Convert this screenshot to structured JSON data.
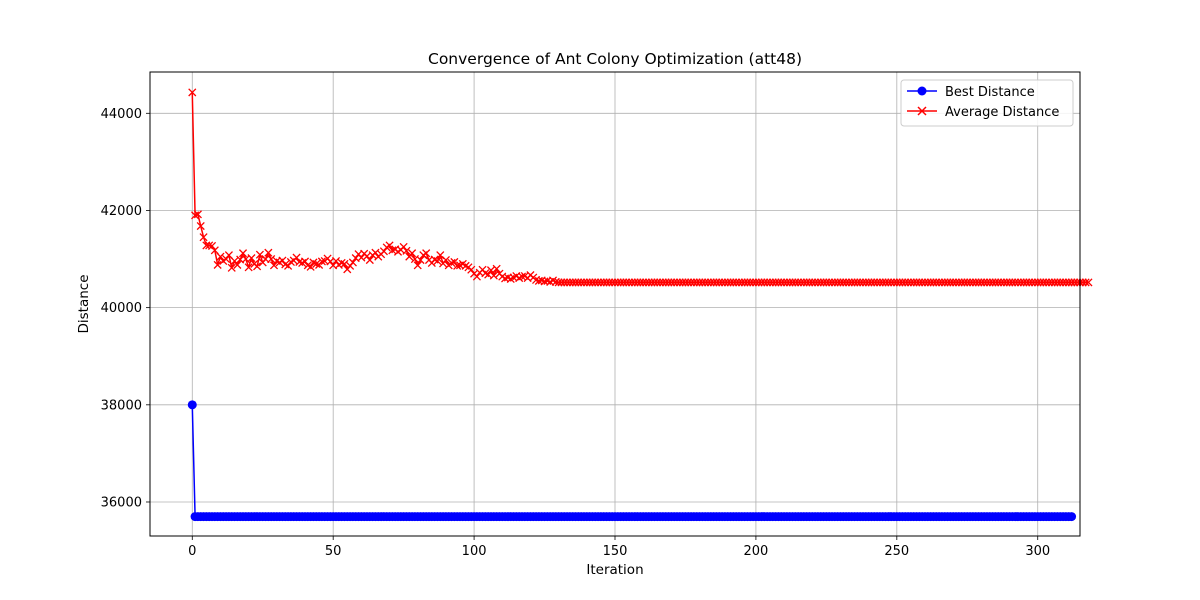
{
  "chart_data": {
    "type": "line",
    "title": "Convergence of Ant Colony Optimization (att48)",
    "xlabel": "Iteration",
    "ylabel": "Distance",
    "xlim": [
      -15,
      315
    ],
    "ylim": [
      35300,
      44850
    ],
    "xticks": [
      0,
      50,
      100,
      150,
      200,
      250,
      300
    ],
    "yticks": [
      36000,
      38000,
      40000,
      42000,
      44000
    ],
    "grid": true,
    "legend_position": "upper right",
    "series": [
      {
        "name": "Best Distance",
        "color": "#0000ff",
        "marker": "circle",
        "x_start": 0,
        "x_step": 1,
        "values": [
          38000,
          35700,
          35700,
          35700,
          35700,
          35700,
          35700,
          35700,
          35700,
          35700,
          35700,
          35700,
          35700,
          35700,
          35700,
          35700,
          35700,
          35700,
          35700,
          35700,
          35700,
          35700,
          35700,
          35700,
          35700,
          35700,
          35700,
          35700,
          35700,
          35700,
          35700,
          35700,
          35700,
          35700,
          35700,
          35700,
          35700,
          35700,
          35700,
          35700,
          35700,
          35700,
          35700,
          35700,
          35700,
          35700,
          35700,
          35700,
          35700,
          35700,
          35700,
          35700,
          35700,
          35700,
          35700,
          35700,
          35700,
          35700,
          35700,
          35700,
          35700,
          35700,
          35700,
          35700,
          35700,
          35700,
          35700,
          35700,
          35700,
          35700,
          35700,
          35700,
          35700,
          35700,
          35700,
          35700,
          35700,
          35700,
          35700,
          35700,
          35700,
          35700,
          35700,
          35700,
          35700,
          35700,
          35700,
          35700,
          35700,
          35700,
          35700,
          35700,
          35700,
          35700,
          35700,
          35700,
          35700,
          35700,
          35700,
          35700,
          35700,
          35700,
          35700,
          35700,
          35700,
          35700,
          35700,
          35700,
          35700,
          35700,
          35700,
          35700,
          35700,
          35700,
          35700,
          35700,
          35700,
          35700,
          35700,
          35700,
          35700,
          35700,
          35700,
          35700,
          35700,
          35700,
          35700,
          35700,
          35700,
          35700,
          35700,
          35700,
          35700,
          35700,
          35700,
          35700,
          35700,
          35700,
          35700,
          35700,
          35700,
          35700,
          35700,
          35700,
          35700,
          35700,
          35700,
          35700,
          35700,
          35700,
          35700,
          35700,
          35700,
          35700,
          35700,
          35700,
          35700,
          35700,
          35700,
          35700,
          35700,
          35700,
          35700,
          35700,
          35700,
          35700,
          35700,
          35700,
          35700,
          35700,
          35700,
          35700,
          35700,
          35700,
          35700,
          35700,
          35700,
          35700,
          35700,
          35700,
          35700,
          35700,
          35700,
          35700,
          35700,
          35700,
          35700,
          35700,
          35700,
          35700,
          35700,
          35700,
          35700,
          35700,
          35700,
          35700,
          35700,
          35700,
          35700,
          35700,
          35700,
          35700,
          35700,
          35700,
          35700,
          35700,
          35700,
          35700,
          35700,
          35700,
          35700,
          35700,
          35700,
          35700,
          35700,
          35700,
          35700,
          35700,
          35700,
          35700,
          35700,
          35700,
          35700,
          35700,
          35700,
          35700,
          35700,
          35700,
          35700,
          35700,
          35700,
          35700,
          35700,
          35700,
          35700,
          35700,
          35700,
          35700,
          35700,
          35700,
          35700,
          35700,
          35700,
          35700,
          35700,
          35700,
          35700,
          35700,
          35700,
          35700,
          35700,
          35700,
          35700,
          35700,
          35700,
          35700,
          35700,
          35700,
          35700,
          35700,
          35700,
          35700,
          35700,
          35700,
          35700,
          35700,
          35700,
          35700,
          35700,
          35700,
          35700,
          35700,
          35700,
          35700,
          35700,
          35700,
          35700,
          35700,
          35700,
          35700,
          35700,
          35700,
          35700,
          35700,
          35700,
          35700,
          35700,
          35700,
          35700,
          35700,
          35700,
          35700,
          35700,
          35700,
          35700,
          35700,
          35700,
          35700,
          35700,
          35700,
          35700,
          35700,
          35700,
          35700,
          35700,
          35700,
          35700,
          35700,
          35700,
          35700,
          35700,
          35700,
          35700
        ]
      },
      {
        "name": "Average Distance",
        "color": "#ff0000",
        "marker": "x",
        "x_start": 0,
        "x_step": 1,
        "values": [
          44430,
          41900,
          41920,
          41680,
          41450,
          41280,
          41280,
          41270,
          41180,
          40880,
          41050,
          40960,
          41000,
          41080,
          40820,
          40960,
          40880,
          40990,
          41120,
          41000,
          40830,
          41020,
          40900,
          40850,
          41090,
          40930,
          41000,
          41130,
          41000,
          40870,
          40960,
          40930,
          40970,
          40890,
          40860,
          40940,
          40970,
          41030,
          40940,
          40920,
          40950,
          40870,
          40840,
          40930,
          40900,
          40880,
          40950,
          40960,
          41010,
          40950,
          40870,
          40960,
          40880,
          40920,
          40900,
          40790,
          40860,
          40930,
          41020,
          41100,
          41030,
          41110,
          41060,
          40980,
          41080,
          41130,
          41050,
          41100,
          41160,
          41240,
          41280,
          41180,
          41200,
          41150,
          41190,
          41250,
          41170,
          41050,
          41120,
          41000,
          40870,
          40980,
          41080,
          41120,
          40980,
          40920,
          40990,
          40960,
          41080,
          40910,
          40980,
          40870,
          40920,
          40940,
          40860,
          40870,
          40900,
          40860,
          40830,
          40780,
          40700,
          40640,
          40720,
          40780,
          40710,
          40680,
          40770,
          40660,
          40800,
          40700,
          40640,
          40600,
          40620,
          40590,
          40620,
          40650,
          40610,
          40640,
          40650,
          40610,
          40670,
          40620,
          40570,
          40550,
          40560,
          40540,
          40550,
          40530,
          40560,
          40530,
          40520,
          40520,
          40520,
          40520,
          40520,
          40520,
          40520,
          40520,
          40520,
          40520,
          40520,
          40520,
          40520,
          40520,
          40520,
          40520,
          40520,
          40520,
          40520,
          40520,
          40520,
          40520,
          40520,
          40520,
          40520,
          40520,
          40520,
          40520,
          40520,
          40520,
          40520,
          40520,
          40520,
          40520,
          40520,
          40520,
          40520,
          40520,
          40520,
          40520,
          40520,
          40520,
          40520,
          40520,
          40520,
          40520,
          40520,
          40520,
          40520,
          40520,
          40520,
          40520,
          40520,
          40520,
          40520,
          40520,
          40520,
          40520,
          40520,
          40520,
          40520,
          40520,
          40520,
          40520,
          40520,
          40520,
          40520,
          40520,
          40520,
          40520,
          40520,
          40520,
          40520,
          40520,
          40520,
          40520,
          40520,
          40520,
          40520,
          40520,
          40520,
          40520,
          40520,
          40520,
          40520,
          40520,
          40520,
          40520,
          40520,
          40520,
          40520,
          40520,
          40520,
          40520,
          40520,
          40520,
          40520,
          40520,
          40520,
          40520,
          40520,
          40520,
          40520,
          40520,
          40520,
          40520,
          40520,
          40520,
          40520,
          40520,
          40520,
          40520,
          40520,
          40520,
          40520,
          40520,
          40520,
          40520,
          40520,
          40520,
          40520,
          40520,
          40520,
          40520,
          40520,
          40520,
          40520,
          40520,
          40520,
          40520,
          40520,
          40520,
          40520,
          40520,
          40520,
          40520,
          40520,
          40520,
          40520,
          40520,
          40520,
          40520,
          40520,
          40520,
          40520,
          40520,
          40520,
          40520,
          40520,
          40520,
          40520,
          40520,
          40520,
          40520,
          40520,
          40520,
          40520,
          40520,
          40520,
          40520,
          40520,
          40520,
          40520,
          40520,
          40520,
          40520,
          40520,
          40520,
          40520,
          40520,
          40520,
          40520,
          40520,
          40520,
          40520,
          40520,
          40520,
          40520,
          40520,
          40520,
          40520,
          40520,
          40520,
          40520,
          40520,
          40520,
          40520,
          40520,
          40520
        ]
      }
    ]
  }
}
